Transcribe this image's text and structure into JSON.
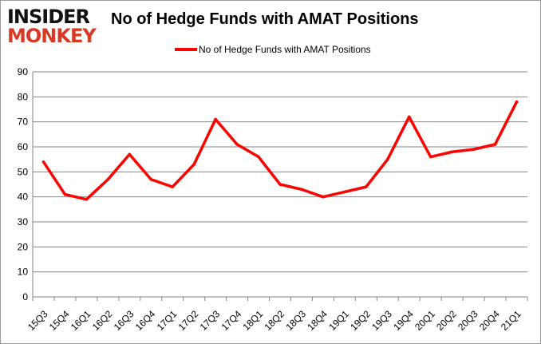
{
  "logo": {
    "line1": "INSIDER",
    "line2": "MONKEY"
  },
  "chart_data": {
    "type": "line",
    "title": "No of Hedge Funds with AMAT Positions",
    "xlabel": "",
    "ylabel": "",
    "categories": [
      "15Q3",
      "15Q4",
      "16Q1",
      "16Q2",
      "16Q3",
      "16Q4",
      "17Q1",
      "17Q2",
      "17Q3",
      "17Q4",
      "18Q1",
      "18Q2",
      "18Q3",
      "18Q4",
      "19Q1",
      "19Q2",
      "19Q3",
      "19Q4",
      "20Q1",
      "20Q2",
      "20Q3",
      "20Q4",
      "21Q1"
    ],
    "series": [
      {
        "name": "No of Hedge Funds with AMAT Positions",
        "color": "#ff0000",
        "values": [
          54,
          41,
          39,
          47,
          57,
          47,
          44,
          53,
          71,
          61,
          56,
          45,
          43,
          40,
          42,
          44,
          55,
          72,
          56,
          58,
          59,
          61,
          78
        ]
      }
    ],
    "ylim": [
      0,
      90
    ],
    "yticks": [
      0,
      10,
      20,
      30,
      40,
      50,
      60,
      70,
      80,
      90
    ],
    "grid": true,
    "legend": "top"
  }
}
